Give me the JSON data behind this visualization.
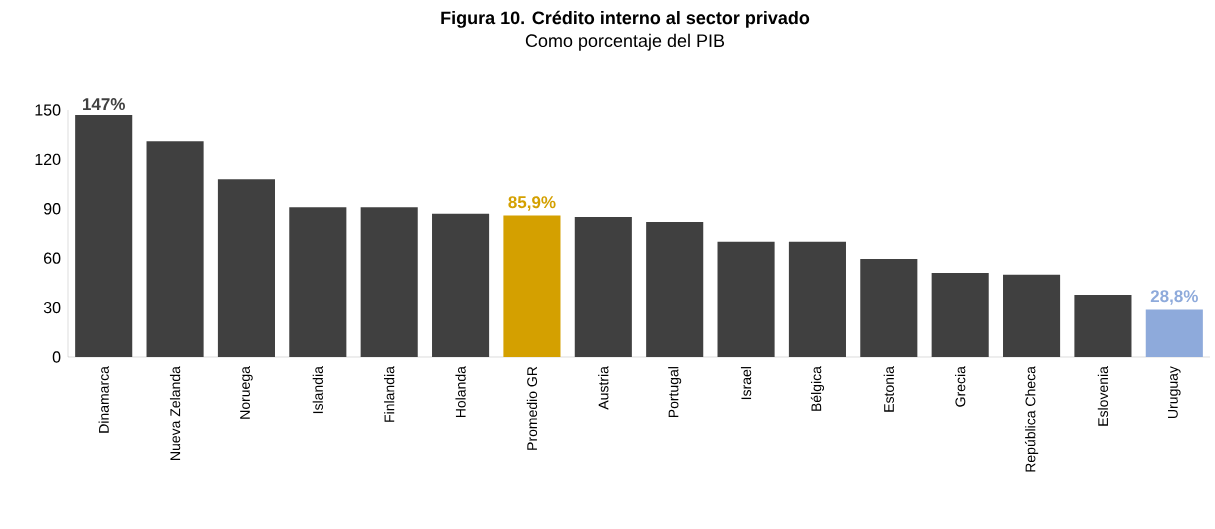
{
  "chart_data": {
    "type": "bar",
    "title": "Figura 10. Crédito interno al sector privado",
    "subtitle": "Como porcentaje del PIB",
    "categories": [
      "Dinamarca",
      "Nueva Zelanda",
      "Noruega",
      "Islandia",
      "Finlandia",
      "Holanda",
      "Promedio GR",
      "Austria",
      "Portugal",
      "Israel",
      "Bélgica",
      "Estonia",
      "Grecia",
      "República Checa",
      "Eslovenia",
      "Uruguay"
    ],
    "values": [
      147,
      131,
      108,
      91,
      91,
      87,
      85.9,
      85,
      82,
      70,
      70,
      59.5,
      51,
      50,
      37.6,
      28.8
    ],
    "colors": [
      "#404040",
      "#404040",
      "#404040",
      "#404040",
      "#404040",
      "#404040",
      "#d4a000",
      "#404040",
      "#404040",
      "#404040",
      "#404040",
      "#404040",
      "#404040",
      "#404040",
      "#404040",
      "#8eaadb"
    ],
    "value_labels": [
      "147%",
      null,
      null,
      null,
      null,
      null,
      "85,9%",
      null,
      null,
      null,
      null,
      null,
      null,
      null,
      null,
      "28,8%"
    ],
    "ylim": [
      0,
      150
    ],
    "yticks": [
      0,
      30,
      60,
      90,
      120,
      150
    ]
  }
}
